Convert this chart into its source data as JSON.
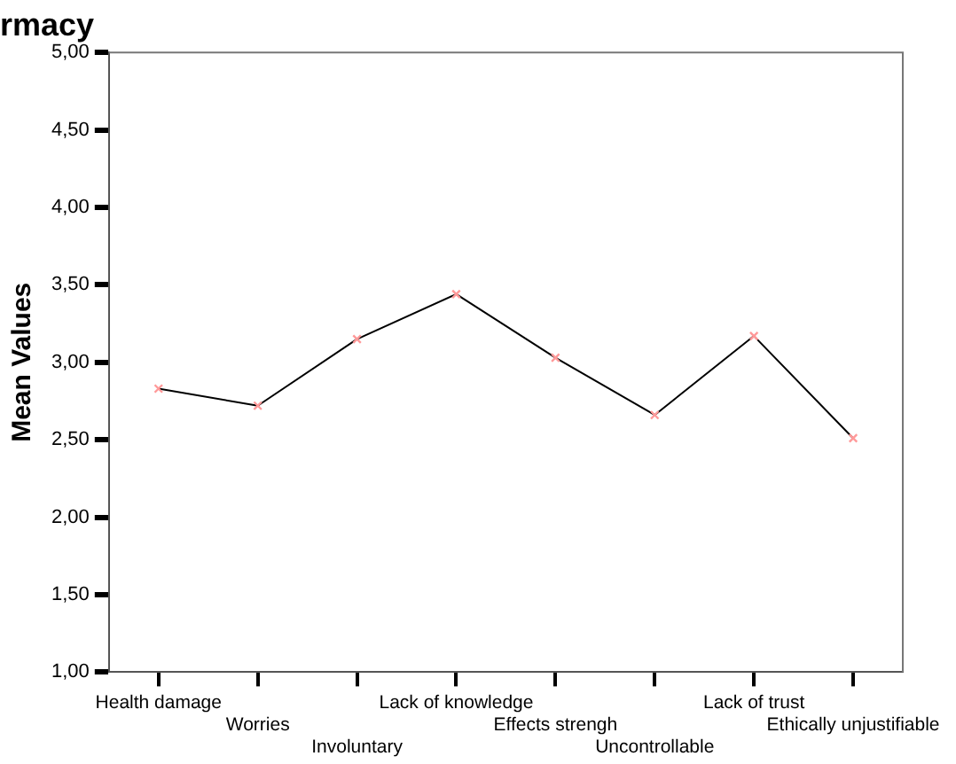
{
  "chart_data": {
    "type": "line",
    "title": "rmacy",
    "ylabel": "Mean Values",
    "categories": [
      "Health damage",
      "Worries",
      "Involuntary",
      "Lack of knowledge",
      "Effects strengh",
      "Uncontrollable",
      "Lack of trust",
      "Ethically unjustifiable"
    ],
    "series": [
      {
        "color": "#000000",
        "colors": [
          "#ff9999",
          "#ff9999",
          "#ff9999",
          "#ff9999",
          "#ff9999",
          "#ff9999",
          "#ff9999",
          "#ff9999"
        ],
        "values": [
          2.83,
          2.72,
          3.15,
          3.44,
          3.03,
          2.66,
          3.17,
          2.51
        ]
      }
    ],
    "ylim": [
      1,
      5
    ],
    "yticks": [
      {
        "value": 1,
        "label": "1,00"
      },
      {
        "value": 1.5,
        "label": "1,50"
      },
      {
        "value": 2,
        "label": "2,00"
      },
      {
        "value": 2.5,
        "label": "2,50"
      },
      {
        "value": 3,
        "label": "3,00"
      },
      {
        "value": 3.5,
        "label": "3,50"
      },
      {
        "value": 4,
        "label": "4,00"
      },
      {
        "value": 4.5,
        "label": "4,50"
      },
      {
        "value": 5,
        "label": "5,00"
      }
    ],
    "grid": false,
    "legend": false,
    "marker": "cross",
    "line_style": "solid"
  }
}
